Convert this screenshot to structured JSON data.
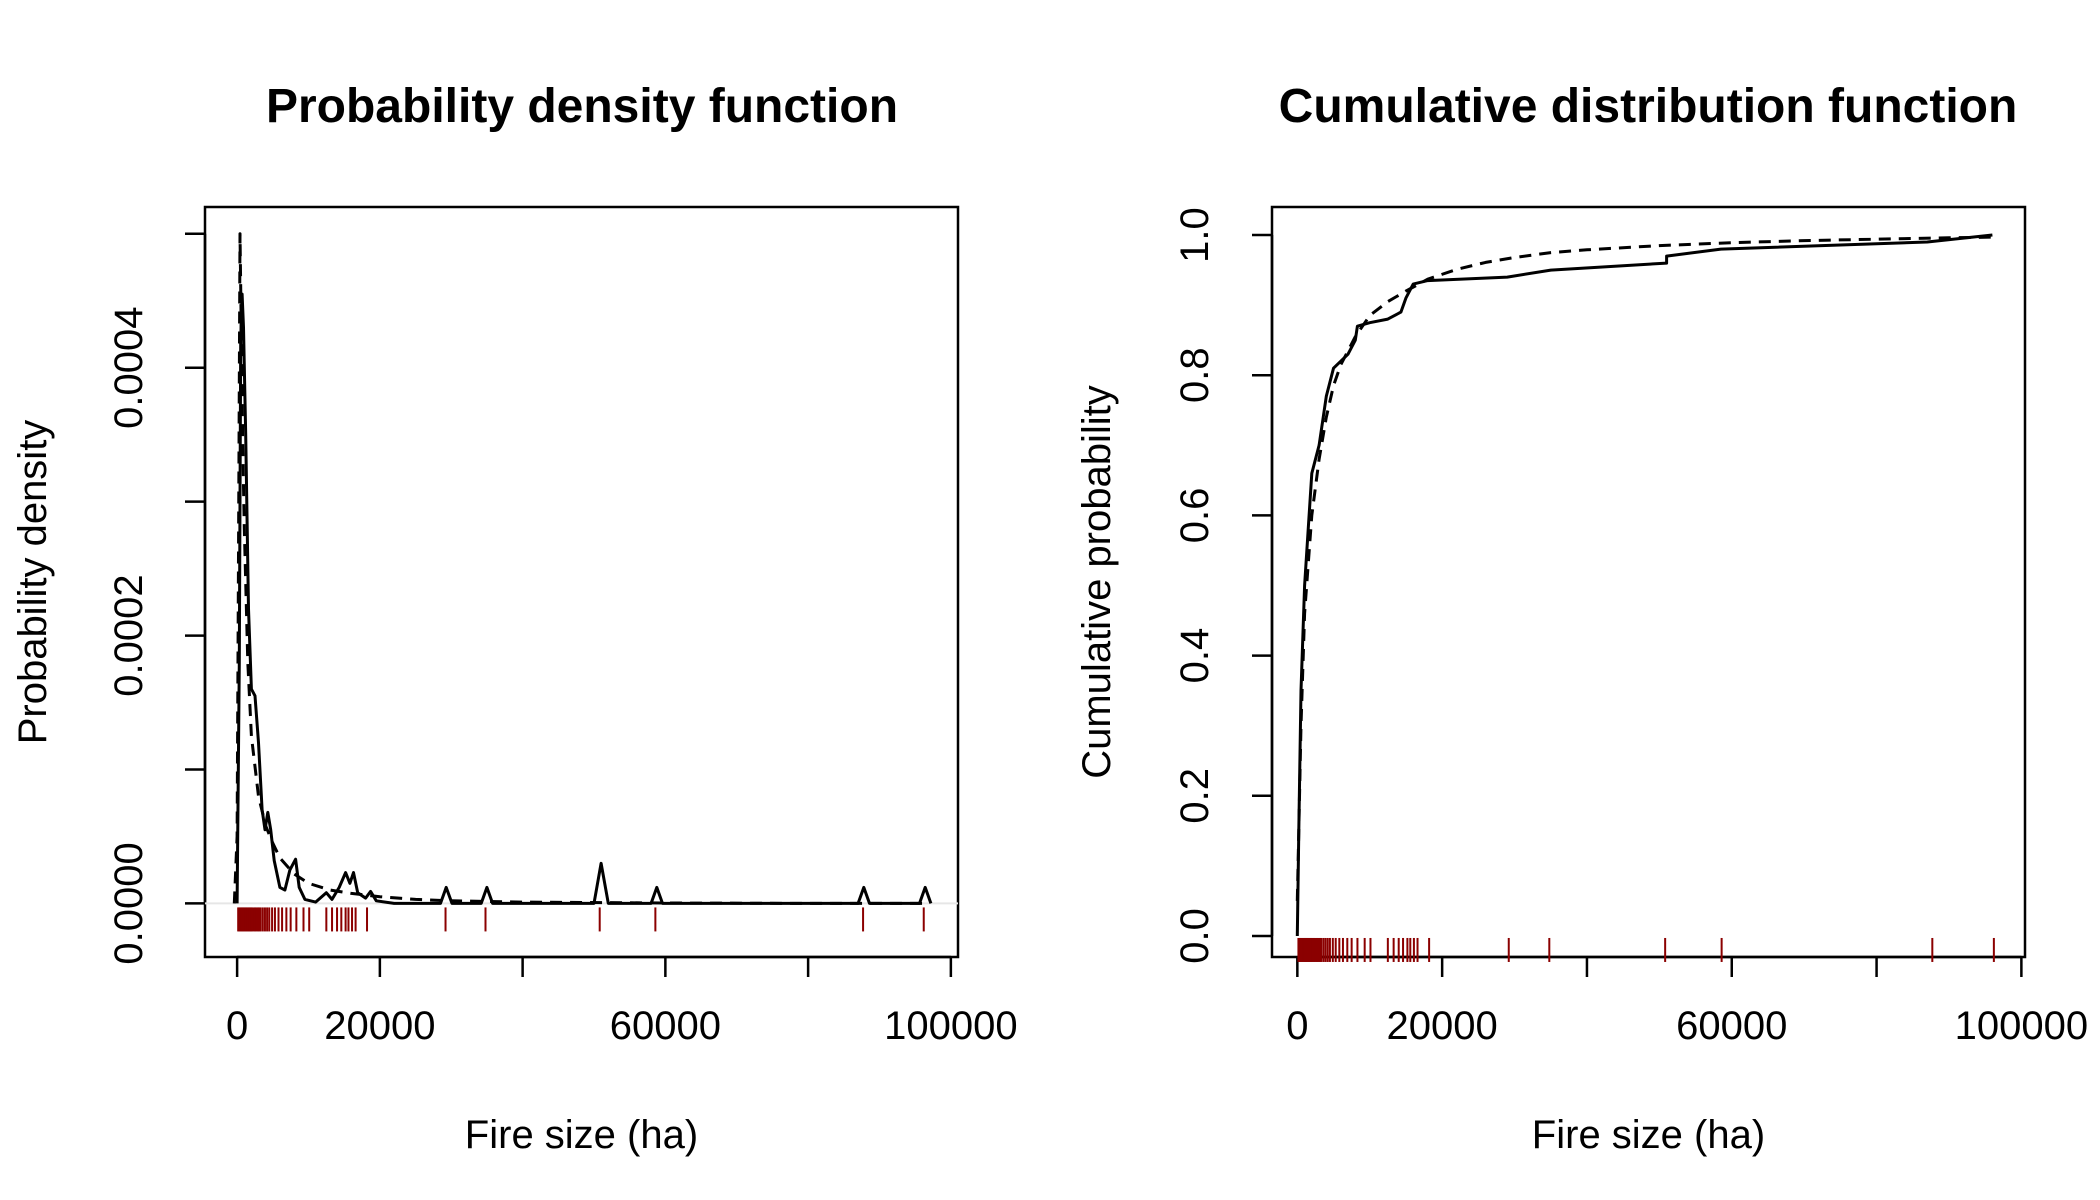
{
  "colors": {
    "rug": "#8b0000",
    "line": "#000000"
  },
  "chart_data": [
    {
      "type": "line",
      "title": "Probability density function",
      "xlabel": "Fire size (ha)",
      "ylabel": "Probability density",
      "xlim": [
        -4500,
        101000
      ],
      "ylim": [
        -4e-05,
        0.00052
      ],
      "x_ticks": [
        0,
        20000,
        40000,
        60000,
        80000,
        100000
      ],
      "x_tick_labels": [
        "0",
        "20000",
        "",
        "60000",
        "",
        "100000"
      ],
      "y_ticks": [
        0,
        0.0001,
        0.0002,
        0.0003,
        0.0004,
        0.0005
      ],
      "y_tick_labels": [
        "0.0000",
        "",
        "0.0002",
        "",
        "0.0004",
        ""
      ],
      "grid": false,
      "series": [
        {
          "style": "solid",
          "points": [
            [
              0,
              0
            ],
            [
              300,
              0.00018
            ],
            [
              500,
              0.00042
            ],
            [
              700,
              0.000455
            ],
            [
              900,
              0.00043
            ],
            [
              1200,
              0.00035
            ],
            [
              1600,
              0.00022
            ],
            [
              2000,
              0.00016
            ],
            [
              2500,
              0.000155
            ],
            [
              3000,
              0.00012
            ],
            [
              3500,
              7e-05
            ],
            [
              3900,
              5.5e-05
            ],
            [
              4300,
              6.8e-05
            ],
            [
              4700,
              5.5e-05
            ],
            [
              5200,
              3.2e-05
            ],
            [
              6000,
              1.2e-05
            ],
            [
              6700,
              1e-05
            ],
            [
              7400,
              2.5e-05
            ],
            [
              8200,
              3.3e-05
            ],
            [
              8700,
              1.2e-05
            ],
            [
              9500,
              3e-06
            ],
            [
              11000,
              1e-06
            ],
            [
              12500,
              8e-06
            ],
            [
              13300,
              3e-06
            ],
            [
              14300,
              1.2e-05
            ],
            [
              15200,
              2.3e-05
            ],
            [
              15800,
              1.5e-05
            ],
            [
              16300,
              2.3e-05
            ],
            [
              16900,
              8e-06
            ],
            [
              18000,
              4e-06
            ],
            [
              18700,
              9e-06
            ],
            [
              19500,
              2e-06
            ],
            [
              22000,
              0
            ],
            [
              28500,
              0
            ],
            [
              29300,
              1.2e-05
            ],
            [
              30100,
              0
            ],
            [
              34200,
              0
            ],
            [
              35000,
              1.2e-05
            ],
            [
              35800,
              0
            ],
            [
              50000,
              0
            ],
            [
              51000,
              3e-05
            ],
            [
              52000,
              0
            ],
            [
              58000,
              0
            ],
            [
              58800,
              1.2e-05
            ],
            [
              59600,
              0
            ],
            [
              87000,
              0
            ],
            [
              87800,
              1.2e-05
            ],
            [
              88600,
              0
            ],
            [
              95600,
              0
            ],
            [
              96400,
              1.2e-05
            ],
            [
              97200,
              0
            ]
          ]
        },
        {
          "style": "dashed",
          "points": [
            [
              -400,
              0
            ],
            [
              0,
              5e-05
            ],
            [
              200,
              0.00026
            ],
            [
              400,
              0.0005
            ],
            [
              600,
              0.00042
            ],
            [
              800,
              0.00034
            ],
            [
              1000,
              0.00028
            ],
            [
              1500,
              0.00018
            ],
            [
              2000,
              0.000125
            ],
            [
              3000,
              8e-05
            ],
            [
              4000,
              5.8e-05
            ],
            [
              5000,
              4.5e-05
            ],
            [
              6000,
              3.4e-05
            ],
            [
              8000,
              2.2e-05
            ],
            [
              10000,
              1.5e-05
            ],
            [
              13000,
              1e-05
            ],
            [
              16000,
              7.5e-06
            ],
            [
              20000,
              5e-06
            ],
            [
              25000,
              3e-06
            ],
            [
              30000,
              2e-06
            ],
            [
              40000,
              1e-06
            ],
            [
              60000,
              3e-07
            ],
            [
              80000,
              5e-08
            ],
            [
              97000,
              0
            ]
          ]
        }
      ],
      "rug": [
        150,
        300,
        450,
        600,
        750,
        900,
        1050,
        1200,
        1350,
        1500,
        1650,
        1800,
        1950,
        2100,
        2300,
        2500,
        2700,
        2900,
        3100,
        3300,
        3600,
        3900,
        4200,
        4500,
        4900,
        5300,
        5800,
        6300,
        6900,
        7500,
        8300,
        9300,
        10100,
        12500,
        13300,
        14000,
        14600,
        15200,
        15600,
        16100,
        16600,
        18200,
        29200,
        34800,
        50800,
        58600,
        87700,
        96200
      ]
    },
    {
      "type": "line",
      "title": "Cumulative distribution function",
      "xlabel": "Fire size (ha)",
      "ylabel": "Cumulative probability",
      "xlim": [
        -3500,
        100500
      ],
      "ylim": [
        -0.03,
        1.04
      ],
      "x_ticks": [
        0,
        20000,
        40000,
        60000,
        80000,
        100000
      ],
      "x_tick_labels": [
        "0",
        "20000",
        "",
        "60000",
        "",
        "100000"
      ],
      "y_ticks": [
        0,
        0.2,
        0.4,
        0.6,
        0.8,
        1.0
      ],
      "y_tick_labels": [
        "0.0",
        "0.2",
        "0.4",
        "0.6",
        "0.8",
        "1.0"
      ],
      "grid": false,
      "series": [
        {
          "style": "solid",
          "points": [
            [
              0,
              0
            ],
            [
              200,
              0.15
            ],
            [
              500,
              0.35
            ],
            [
              1000,
              0.5
            ],
            [
              1500,
              0.58
            ],
            [
              2000,
              0.66
            ],
            [
              3000,
              0.7
            ],
            [
              4000,
              0.77
            ],
            [
              5000,
              0.81
            ],
            [
              6000,
              0.82
            ],
            [
              7000,
              0.83
            ],
            [
              8000,
              0.85
            ],
            [
              8300,
              0.87
            ],
            [
              10000,
              0.875
            ],
            [
              12500,
              0.88
            ],
            [
              14300,
              0.89
            ],
            [
              15000,
              0.91
            ],
            [
              16000,
              0.93
            ],
            [
              18000,
              0.935
            ],
            [
              29000,
              0.94
            ],
            [
              35000,
              0.95
            ],
            [
              51000,
              0.96
            ],
            [
              51000,
              0.97
            ],
            [
              58500,
              0.98
            ],
            [
              87000,
              0.99
            ],
            [
              96000,
              1.0
            ]
          ]
        },
        {
          "style": "dashed",
          "points": [
            [
              0,
              0.05
            ],
            [
              500,
              0.3
            ],
            [
              1000,
              0.46
            ],
            [
              2000,
              0.6
            ],
            [
              3000,
              0.68
            ],
            [
              4000,
              0.74
            ],
            [
              5000,
              0.785
            ],
            [
              6000,
              0.815
            ],
            [
              8000,
              0.855
            ],
            [
              10000,
              0.885
            ],
            [
              12500,
              0.905
            ],
            [
              15000,
              0.92
            ],
            [
              18000,
              0.937
            ],
            [
              22000,
              0.951
            ],
            [
              26000,
              0.961
            ],
            [
              30000,
              0.968
            ],
            [
              35000,
              0.975
            ],
            [
              40000,
              0.979
            ],
            [
              50000,
              0.985
            ],
            [
              60000,
              0.989
            ],
            [
              70000,
              0.992
            ],
            [
              80000,
              0.994
            ],
            [
              90000,
              0.996
            ],
            [
              96000,
              0.997
            ]
          ]
        }
      ],
      "rug": [
        150,
        300,
        450,
        600,
        750,
        900,
        1050,
        1200,
        1350,
        1500,
        1650,
        1800,
        1950,
        2100,
        2300,
        2500,
        2700,
        2900,
        3100,
        3300,
        3600,
        3900,
        4200,
        4500,
        4900,
        5300,
        5800,
        6300,
        6900,
        7500,
        8300,
        9300,
        10100,
        12500,
        13300,
        14000,
        14600,
        15200,
        15600,
        16100,
        16600,
        18200,
        29200,
        34800,
        50800,
        58600,
        87700,
        96200
      ]
    }
  ]
}
